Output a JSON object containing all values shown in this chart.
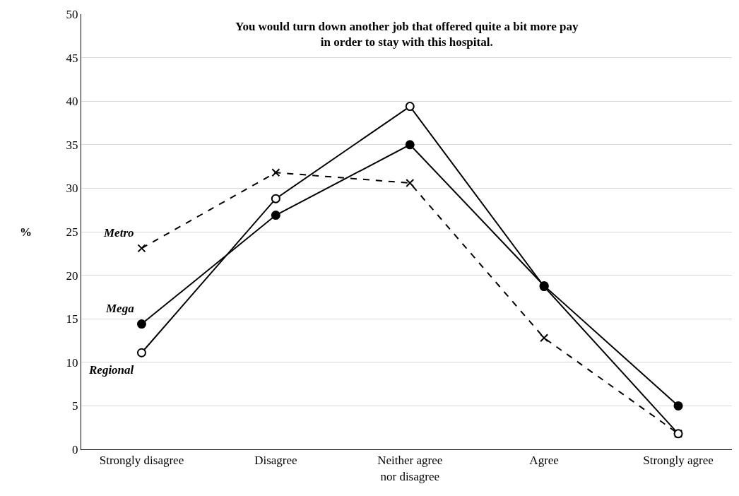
{
  "chart_data": {
    "type": "line",
    "title": "You would turn down another job that offered quite a bit more pay\nin order to stay with this hospital.",
    "ylabel": "%",
    "categories": [
      "Strongly disagree",
      "Disagree",
      "Neither agree\nnor disagree",
      "Agree",
      "Strongly agree"
    ],
    "series": [
      {
        "name": "Metro",
        "color": "#000000",
        "values": [
          23.1,
          31.8,
          30.6,
          12.8,
          1.8
        ],
        "line_style": "dashed",
        "marker": "cross"
      },
      {
        "name": "Mega",
        "color": "#000000",
        "values": [
          14.4,
          26.9,
          35.0,
          18.8,
          5.0
        ],
        "line_style": "solid",
        "marker": "circle"
      },
      {
        "name": "Regional",
        "color": "#000000",
        "values": [
          11.1,
          28.8,
          39.4,
          18.7,
          1.8
        ],
        "line_style": "solid",
        "marker": "circle"
      }
    ],
    "ylim": [
      0,
      50
    ],
    "yticks": [
      0,
      5,
      10,
      15,
      20,
      25,
      30,
      35,
      40,
      45,
      50
    ],
    "grid": "y",
    "legend": false
  }
}
